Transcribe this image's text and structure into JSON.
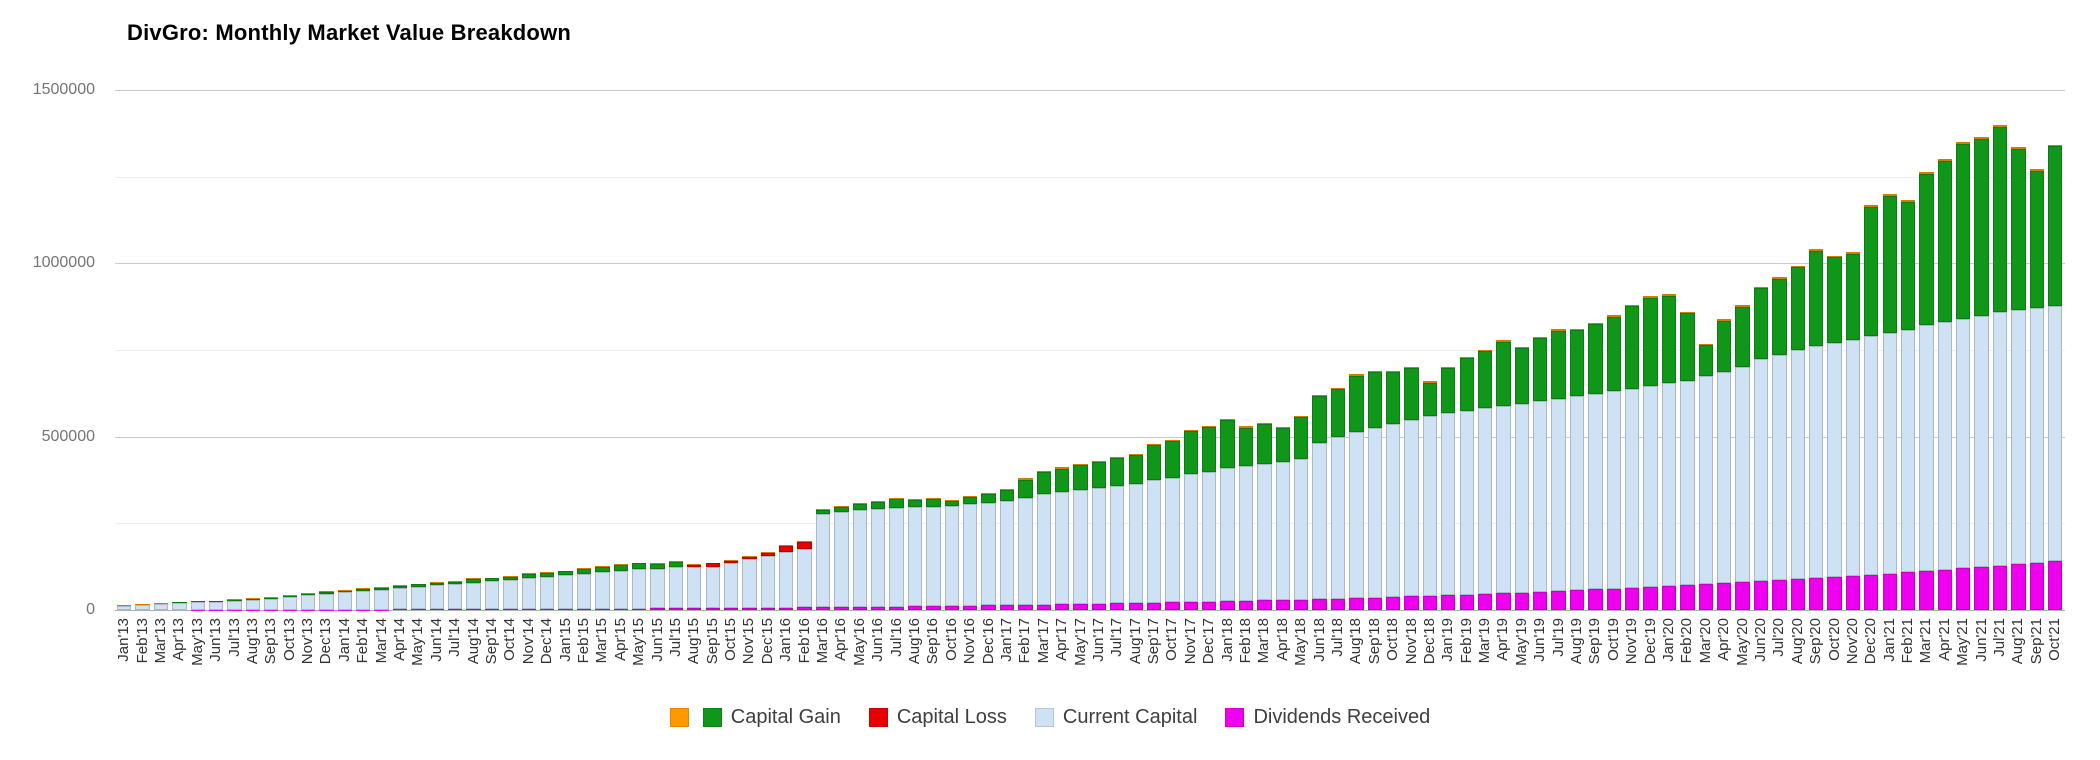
{
  "page": {
    "background": "#ffffff"
  },
  "chart_data": {
    "type": "bar",
    "stacked": true,
    "title": "DivGro: Monthly Market Value Breakdown",
    "xlabel": "",
    "ylabel": "",
    "ylim": [
      0,
      1500000
    ],
    "yticks": [
      0,
      500000,
      1000000,
      1500000
    ],
    "ytick_labels": [
      "0",
      "500000",
      "1000000",
      "1500000"
    ],
    "minor_gridlines": [
      250000,
      750000,
      1250000
    ],
    "grid": true,
    "legend_position": "bottom",
    "categories": [
      "Jan'13",
      "Feb'13",
      "Mar'13",
      "Apr'13",
      "May'13",
      "Jun'13",
      "Jul'13",
      "Aug'13",
      "Sep'13",
      "Oct'13",
      "Nov'13",
      "Dec'13",
      "Jan'14",
      "Feb'14",
      "Mar'14",
      "Apr'14",
      "May'14",
      "Jun'14",
      "Jul'14",
      "Aug'14",
      "Sep'14",
      "Oct'14",
      "Nov'14",
      "Dec'14",
      "Jan'15",
      "Feb'15",
      "Mar'15",
      "Apr'15",
      "May'15",
      "Jun'15",
      "Jul'15",
      "Aug'15",
      "Sep'15",
      "Oct'15",
      "Nov'15",
      "Dec'15",
      "Jan'16",
      "Feb'16",
      "Mar'16",
      "Apr'16",
      "May'16",
      "Jun'16",
      "Jul'16",
      "Aug'16",
      "Sep'16",
      "Oct'16",
      "Nov'16",
      "Dec'16",
      "Jan'17",
      "Feb'17",
      "Mar'17",
      "Apr'17",
      "May'17",
      "Jun'17",
      "Jul'17",
      "Aug'17",
      "Sep'17",
      "Oct'17",
      "Nov'17",
      "Dec'17",
      "Jan'18",
      "Feb'18",
      "Mar'18",
      "Apr'18",
      "May'18",
      "Jun'18",
      "Jul'18",
      "Aug'18",
      "Sep'18",
      "Oct'18",
      "Nov'18",
      "Dec'18",
      "Jan'19",
      "Feb'19",
      "Mar'19",
      "Apr'19",
      "May'19",
      "Jun'19",
      "Jul'19",
      "Aug'19",
      "Sep'19",
      "Oct'19",
      "Nov'19",
      "Dec'19",
      "Jan'20",
      "Feb'20",
      "Mar'20",
      "Apr'20",
      "May'20",
      "Jun'20",
      "Jul'20",
      "Aug'20",
      "Sep'20",
      "Oct'20",
      "Nov'20",
      "Dec'20",
      "Jan'21",
      "Feb'21",
      "Mar'21",
      "Apr'21",
      "May'21",
      "Jun'21",
      "Jul'21",
      "Aug'21",
      "Sep'21",
      "Oct'21"
    ],
    "series": [
      {
        "name": "Dividends Received",
        "color": "#ee00ee",
        "values": [
          0,
          100,
          150,
          200,
          250,
          300,
          400,
          500,
          600,
          700,
          800,
          1000,
          1100,
          1200,
          1400,
          1500,
          1700,
          1900,
          2100,
          2300,
          2500,
          2700,
          2900,
          3100,
          3300,
          3500,
          3800,
          4000,
          4300,
          4600,
          4900,
          5200,
          5500,
          5800,
          6100,
          6500,
          6900,
          7300,
          7800,
          8300,
          8800,
          9400,
          10000,
          10600,
          11200,
          11800,
          12400,
          13100,
          13800,
          14500,
          15300,
          16100,
          17000,
          17900,
          18800,
          19700,
          20700,
          21700,
          22800,
          23900,
          25000,
          26200,
          27500,
          28800,
          30100,
          31500,
          33000,
          34500,
          36000,
          37600,
          39200,
          41000,
          42800,
          44600,
          46500,
          48500,
          50500,
          52600,
          54700,
          56900,
          59200,
          61500,
          63900,
          66400,
          69000,
          71600,
          74300,
          77000,
          79800,
          82700,
          85700,
          88700,
          91800,
          95000,
          98300,
          101700,
          105200,
          108800,
          112500,
          116300,
          120200,
          124200,
          128300,
          132500,
          136800,
          141200
        ]
      },
      {
        "name": "Current Capital",
        "color": "#cfe2f3",
        "values": [
          11000,
          14000,
          17000,
          20000,
          23000,
          23500,
          27000,
          29000,
          32000,
          37000,
          42000,
          45000,
          50000,
          54000,
          57000,
          61000,
          65000,
          69000,
          72000,
          77000,
          80000,
          83000,
          90000,
          93000,
          97000,
          101000,
          105000,
          109000,
          113000,
          115000,
          119000,
          118000,
          120000,
          130000,
          140000,
          148000,
          160000,
          170000,
          270000,
          275000,
          280000,
          283000,
          285000,
          286000,
          287000,
          288000,
          292000,
          295000,
          300000,
          310000,
          320000,
          325000,
          330000,
          335000,
          340000,
          345000,
          355000,
          360000,
          370000,
          375000,
          385000,
          390000,
          395000,
          398000,
          405000,
          450000,
          465000,
          480000,
          490000,
          500000,
          510000,
          520000,
          525000,
          530000,
          535000,
          540000,
          545000,
          550000,
          555000,
          560000,
          565000,
          570000,
          575000,
          580000,
          585000,
          590000,
          600000,
          610000,
          620000,
          640000,
          650000,
          660000,
          670000,
          675000,
          680000,
          690000,
          695000,
          700000,
          710000,
          715000,
          720000,
          725000,
          730000,
          732000,
          734000,
          736000
        ]
      },
      {
        "name": "Capital Gain",
        "color": "#109618",
        "values": [
          800,
          1200,
          1500,
          1800,
          2000,
          1500,
          2500,
          2000,
          2500,
          3500,
          4500,
          5500,
          4500,
          6000,
          6000,
          6500,
          7500,
          8500,
          7500,
          10000,
          9000,
          9000,
          11500,
          11000,
          11000,
          15000,
          15500,
          16000,
          17000,
          14500,
          15000,
          0,
          0,
          0,
          0,
          0,
          0,
          0,
          10000,
          15000,
          18000,
          20000,
          24000,
          22000,
          21000,
          15000,
          22000,
          28000,
          33000,
          52000,
          62000,
          67000,
          71000,
          75000,
          79000,
          83000,
          100000,
          105000,
          123000,
          128000,
          138000,
          110000,
          113000,
          98000,
          122000,
          135000,
          140000,
          162000,
          160000,
          148000,
          148000,
          95000,
          130000,
          152000,
          165000,
          186000,
          160000,
          182000,
          196000,
          190000,
          200000,
          215000,
          238000,
          255000,
          253000,
          195000,
          90000,
          148000,
          175000,
          205000,
          220000,
          240000,
          275000,
          248000,
          250000,
          372000,
          395000,
          368000,
          435000,
          465000,
          505000,
          510000,
          535000,
          465000,
          395000,
          460000
        ]
      },
      {
        "name": "Capital Loss",
        "color": "#e60000",
        "values": [
          0,
          0,
          0,
          0,
          0,
          0,
          0,
          0,
          0,
          0,
          0,
          0,
          0,
          0,
          0,
          0,
          0,
          0,
          0,
          0,
          0,
          0,
          0,
          0,
          0,
          0,
          0,
          0,
          0,
          0,
          0,
          7000,
          9000,
          5000,
          8000,
          10000,
          17000,
          18000,
          0,
          0,
          0,
          0,
          0,
          0,
          0,
          0,
          0,
          0,
          0,
          0,
          0,
          0,
          0,
          0,
          0,
          0,
          0,
          0,
          0,
          0,
          0,
          0,
          0,
          0,
          0,
          0,
          0,
          0,
          0,
          0,
          0,
          0,
          0,
          0,
          0,
          0,
          0,
          0,
          0,
          0,
          0,
          0,
          0,
          0,
          0,
          0,
          0,
          0,
          0,
          0,
          0,
          0,
          0,
          0,
          0,
          0,
          0,
          0,
          0,
          0,
          0,
          0,
          0,
          0,
          0,
          0
        ]
      },
      {
        "name": "",
        "color": "#ff9900",
        "values": [
          2000,
          2000,
          2000,
          2000,
          2000,
          2000,
          2000,
          2000,
          2000,
          2000,
          2000,
          2000,
          2200,
          2200,
          2200,
          2200,
          2200,
          2200,
          2200,
          2200,
          2200,
          2200,
          2200,
          2200,
          2500,
          2500,
          2500,
          2500,
          2500,
          2500,
          2500,
          2500,
          2500,
          2500,
          2500,
          2500,
          2800,
          2800,
          2800,
          2800,
          2800,
          2800,
          2800,
          2800,
          2800,
          2800,
          2800,
          2800,
          3200,
          3200,
          3200,
          3200,
          3200,
          3200,
          3200,
          3200,
          3200,
          3200,
          3200,
          3200,
          3600,
          3600,
          3600,
          3600,
          3600,
          3600,
          3600,
          3600,
          3600,
          3600,
          3600,
          3600,
          4000,
          4000,
          4000,
          4000,
          4000,
          4000,
          4000,
          4000,
          4000,
          4000,
          4000,
          4000,
          4500,
          4500,
          4500,
          4500,
          4500,
          4500,
          4500,
          4500,
          4500,
          4500,
          4500,
          4500,
          5000,
          5000,
          5000,
          5000,
          5000,
          5000,
          5000,
          5000,
          5000,
          5000
        ]
      }
    ],
    "legend": [
      {
        "label": "",
        "color": "#ff9900"
      },
      {
        "label": "Capital Gain",
        "color": "#109618"
      },
      {
        "label": "Capital Loss",
        "color": "#e60000"
      },
      {
        "label": "Current Capital",
        "color": "#cfe2f3"
      },
      {
        "label": "Dividends Received",
        "color": "#ee00ee"
      }
    ]
  }
}
